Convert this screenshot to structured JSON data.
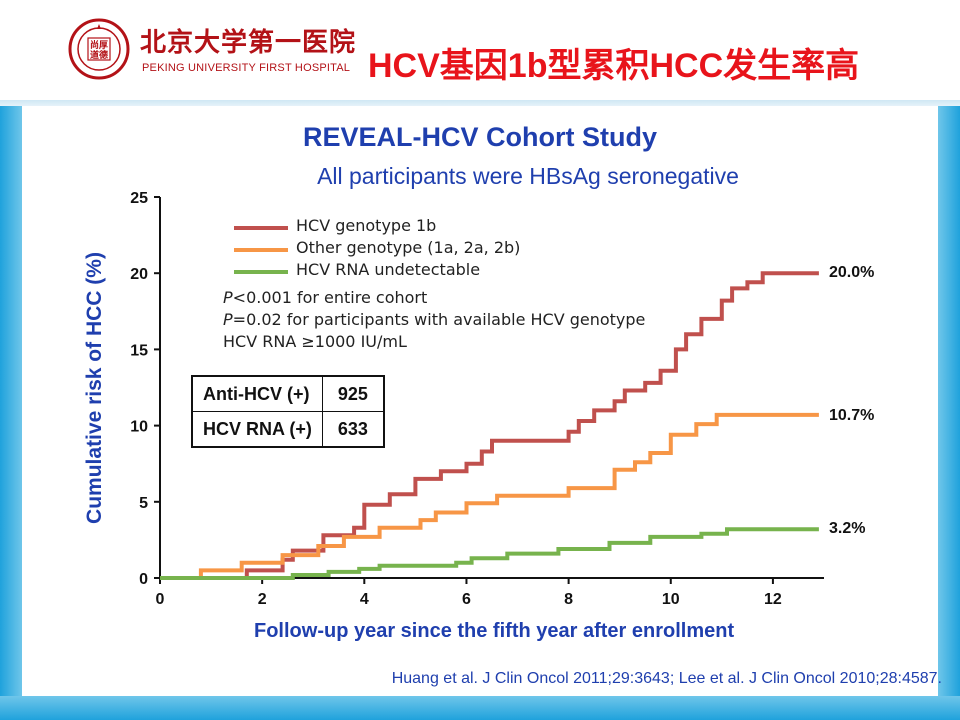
{
  "header": {
    "logo_cn": "北京大学第一医院",
    "logo_en": "PEKING UNIVERSITY FIRST HOSPITAL",
    "seal_center": "尚厚\n道德",
    "slide_title": "HCV基因1b型累积HCC发生率高"
  },
  "citation": "Huang et al. J Clin Oncol 2011;29:3643; Lee et al. J Clin Oncol 2010;28:4587.",
  "annotations": {
    "p1_italic": "P",
    "p1_rest": "<0.001 for entire cohort",
    "p2_italic": "P",
    "p2_rest": "=0.02 for participants with available HCV genotype",
    "p3": "HCV RNA ≥1000 IU/mL"
  },
  "counts_table": {
    "rows": [
      {
        "label": "Anti-HCV (+)",
        "value": "925"
      },
      {
        "label": "HCV RNA (+)",
        "value": "633"
      }
    ]
  },
  "end_labels": {
    "genotype_1b": "20.0%",
    "other": "10.7%",
    "undetectable": "3.2%"
  },
  "colors": {
    "genotype_1b": "#c0504d",
    "other": "#f79646",
    "undetectable": "#77b34d",
    "title_blue": "#1f3fae",
    "brand_red": "#b31217"
  },
  "chart_data": {
    "type": "line",
    "title": "REVEAL-HCV Cohort Study",
    "subtitle": "All participants were HBsAg seronegative",
    "xlabel": "Follow-up year since the fifth year after enrollment",
    "ylabel": "Cumulative risk of HCC (%)",
    "xlim": [
      0,
      13
    ],
    "ylim": [
      0,
      25
    ],
    "x_ticks": [
      0,
      2,
      4,
      6,
      8,
      10,
      12
    ],
    "y_ticks": [
      0,
      5,
      10,
      15,
      20,
      25
    ],
    "grid": false,
    "legend_position": "top-left",
    "step": true,
    "series": [
      {
        "name": "HCV genotype 1b",
        "points": [
          [
            0,
            0
          ],
          [
            1.7,
            0
          ],
          [
            1.7,
            0.5
          ],
          [
            2.4,
            0.5
          ],
          [
            2.4,
            1.2
          ],
          [
            2.6,
            1.2
          ],
          [
            2.6,
            1.8
          ],
          [
            3.2,
            1.8
          ],
          [
            3.2,
            2.8
          ],
          [
            3.8,
            2.8
          ],
          [
            3.8,
            3.3
          ],
          [
            4.0,
            3.3
          ],
          [
            4.0,
            4.8
          ],
          [
            4.5,
            4.8
          ],
          [
            4.5,
            5.5
          ],
          [
            5.0,
            5.5
          ],
          [
            5.0,
            6.5
          ],
          [
            5.5,
            6.5
          ],
          [
            5.5,
            7.0
          ],
          [
            6.0,
            7.0
          ],
          [
            6.0,
            7.5
          ],
          [
            6.3,
            7.5
          ],
          [
            6.3,
            8.3
          ],
          [
            6.5,
            8.3
          ],
          [
            6.5,
            9.0
          ],
          [
            8.0,
            9.0
          ],
          [
            8.0,
            9.6
          ],
          [
            8.2,
            9.6
          ],
          [
            8.2,
            10.3
          ],
          [
            8.5,
            10.3
          ],
          [
            8.5,
            11.0
          ],
          [
            8.9,
            11.0
          ],
          [
            8.9,
            11.6
          ],
          [
            9.1,
            11.6
          ],
          [
            9.1,
            12.3
          ],
          [
            9.5,
            12.3
          ],
          [
            9.5,
            12.8
          ],
          [
            9.8,
            12.8
          ],
          [
            9.8,
            13.6
          ],
          [
            10.1,
            13.6
          ],
          [
            10.1,
            15.0
          ],
          [
            10.3,
            15.0
          ],
          [
            10.3,
            16.0
          ],
          [
            10.6,
            16.0
          ],
          [
            10.6,
            17.0
          ],
          [
            11.0,
            17.0
          ],
          [
            11.0,
            18.2
          ],
          [
            11.2,
            18.2
          ],
          [
            11.2,
            19.0
          ],
          [
            11.5,
            19.0
          ],
          [
            11.5,
            19.4
          ],
          [
            11.8,
            19.4
          ],
          [
            11.8,
            20.0
          ],
          [
            12.9,
            20.0
          ]
        ]
      },
      {
        "name": "Other genotype (1a, 2a, 2b)",
        "points": [
          [
            0,
            0
          ],
          [
            0.8,
            0
          ],
          [
            0.8,
            0.5
          ],
          [
            1.6,
            0.5
          ],
          [
            1.6,
            1.0
          ],
          [
            2.4,
            1.0
          ],
          [
            2.4,
            1.5
          ],
          [
            3.1,
            1.5
          ],
          [
            3.1,
            2.1
          ],
          [
            3.6,
            2.1
          ],
          [
            3.6,
            2.7
          ],
          [
            4.3,
            2.7
          ],
          [
            4.3,
            3.3
          ],
          [
            5.1,
            3.3
          ],
          [
            5.1,
            3.8
          ],
          [
            5.4,
            3.8
          ],
          [
            5.4,
            4.3
          ],
          [
            6.0,
            4.3
          ],
          [
            6.0,
            4.9
          ],
          [
            6.6,
            4.9
          ],
          [
            6.6,
            5.4
          ],
          [
            8.0,
            5.4
          ],
          [
            8.0,
            5.9
          ],
          [
            8.9,
            5.9
          ],
          [
            8.9,
            7.1
          ],
          [
            9.3,
            7.1
          ],
          [
            9.3,
            7.6
          ],
          [
            9.6,
            7.6
          ],
          [
            9.6,
            8.2
          ],
          [
            10.0,
            8.2
          ],
          [
            10.0,
            9.4
          ],
          [
            10.5,
            9.4
          ],
          [
            10.5,
            10.1
          ],
          [
            10.9,
            10.1
          ],
          [
            10.9,
            10.7
          ],
          [
            12.9,
            10.7
          ]
        ]
      },
      {
        "name": "HCV RNA undetectable",
        "points": [
          [
            0,
            0
          ],
          [
            2.6,
            0
          ],
          [
            2.6,
            0.2
          ],
          [
            3.3,
            0.2
          ],
          [
            3.3,
            0.4
          ],
          [
            3.9,
            0.4
          ],
          [
            3.9,
            0.6
          ],
          [
            4.3,
            0.6
          ],
          [
            4.3,
            0.8
          ],
          [
            5.8,
            0.8
          ],
          [
            5.8,
            1.0
          ],
          [
            6.1,
            1.0
          ],
          [
            6.1,
            1.3
          ],
          [
            6.8,
            1.3
          ],
          [
            6.8,
            1.6
          ],
          [
            7.8,
            1.6
          ],
          [
            7.8,
            1.9
          ],
          [
            8.8,
            1.9
          ],
          [
            8.8,
            2.3
          ],
          [
            9.6,
            2.3
          ],
          [
            9.6,
            2.7
          ],
          [
            10.6,
            2.7
          ],
          [
            10.6,
            2.9
          ],
          [
            11.1,
            2.9
          ],
          [
            11.1,
            3.2
          ],
          [
            12.9,
            3.2
          ]
        ]
      }
    ]
  }
}
